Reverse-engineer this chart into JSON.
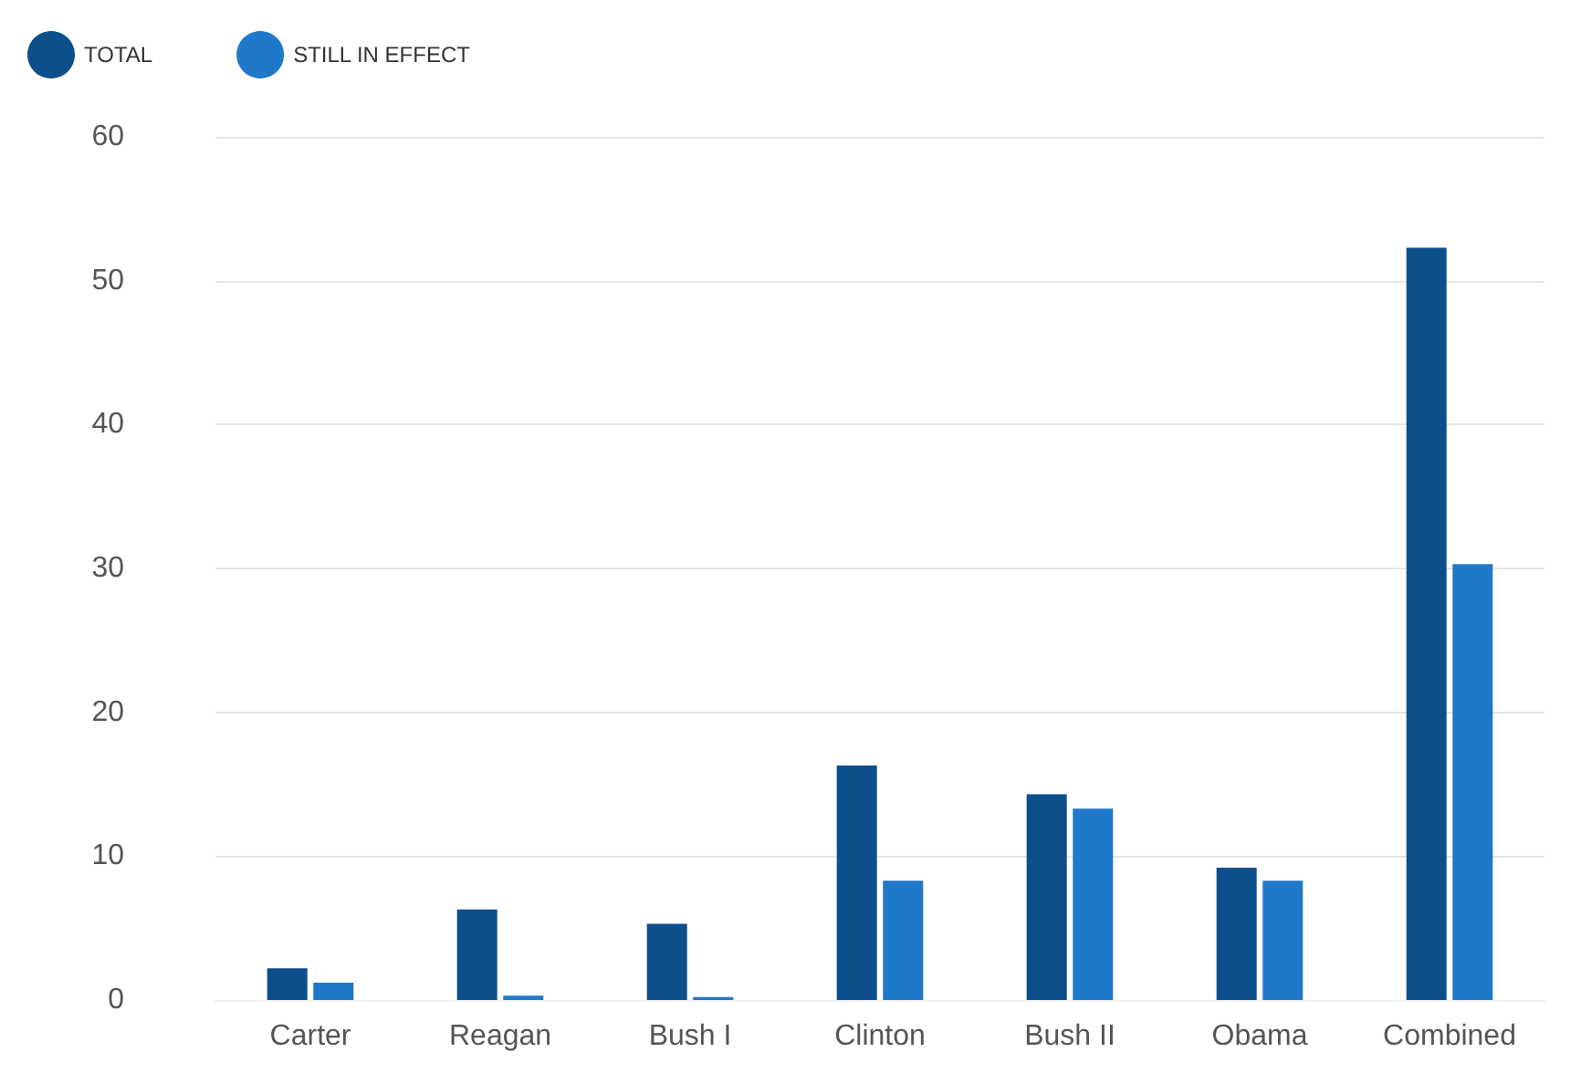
{
  "chart_data": {
    "type": "bar",
    "categories": [
      "Carter",
      "Reagan",
      "Bush I",
      "Clinton",
      "Bush II",
      "Obama",
      "Combined"
    ],
    "series": [
      {
        "name": "TOTAL",
        "color": "#0d4f8b",
        "values": [
          2.2,
          6.3,
          5.3,
          16.3,
          14.3,
          9.2,
          52.3
        ]
      },
      {
        "name": "STILL IN EFFECT",
        "color": "#1f78c8",
        "values": [
          1.2,
          0.3,
          0.2,
          8.3,
          13.3,
          8.3,
          30.3
        ]
      }
    ],
    "ylim": [
      0,
      60
    ],
    "yticks": [
      0,
      10,
      20,
      30,
      40,
      50,
      60
    ],
    "grid": "y",
    "legend": "top left"
  }
}
